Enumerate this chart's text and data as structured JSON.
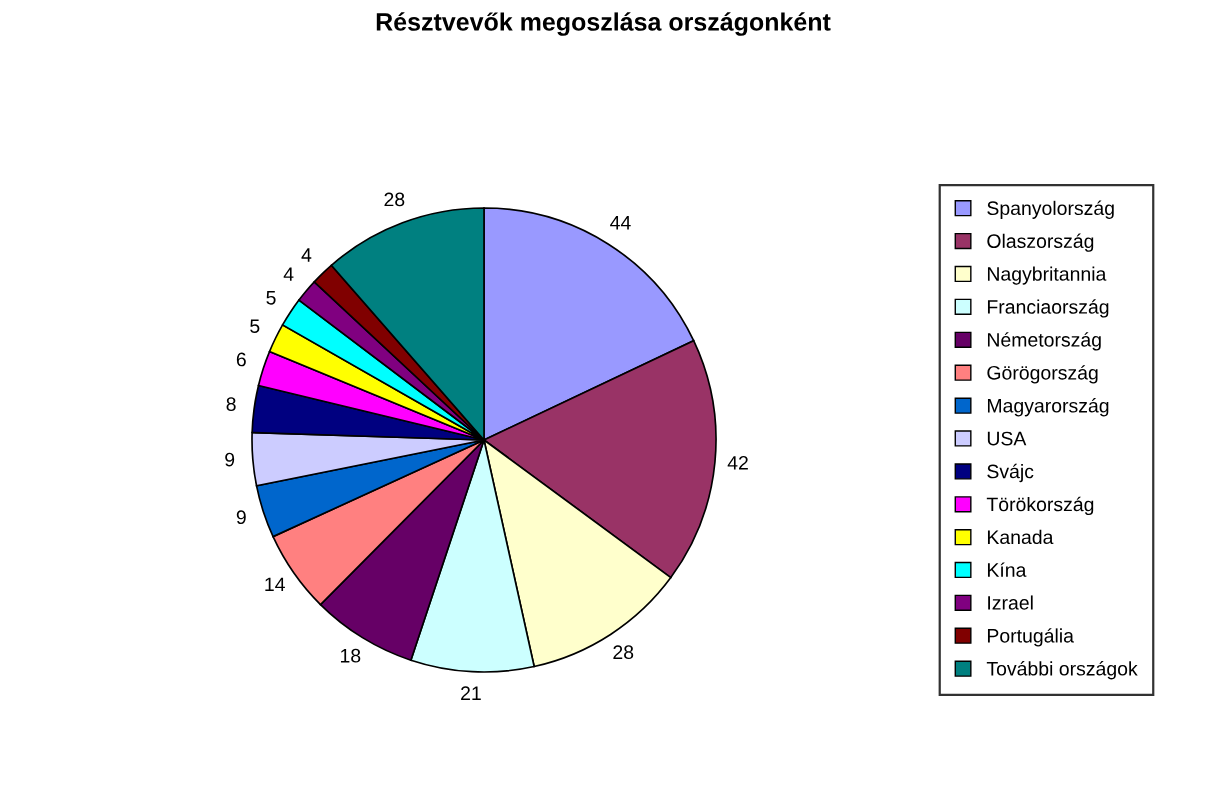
{
  "chart_data": {
    "type": "pie",
    "title": "Résztvevők megoszlása országonként",
    "categories": [
      "Spanyolország",
      "Olaszország",
      "Nagybritannia",
      "Franciaország",
      "Németország",
      "Görögország",
      "Magyarország",
      "USA",
      "Svájc",
      "Törökország",
      "Kanada",
      "Kína",
      "Izrael",
      "Portugália",
      "További országok"
    ],
    "values": [
      44,
      42,
      28,
      21,
      18,
      14,
      9,
      9,
      8,
      6,
      5,
      5,
      4,
      4,
      28
    ],
    "colors": [
      "#9999ff",
      "#993366",
      "#ffffcc",
      "#ccffff",
      "#660066",
      "#ff8080",
      "#0066cc",
      "#ccccff",
      "#000080",
      "#ff00ff",
      "#ffff00",
      "#00ffff",
      "#800080",
      "#800000",
      "#008080"
    ],
    "data_labels": true,
    "legend": "right"
  }
}
